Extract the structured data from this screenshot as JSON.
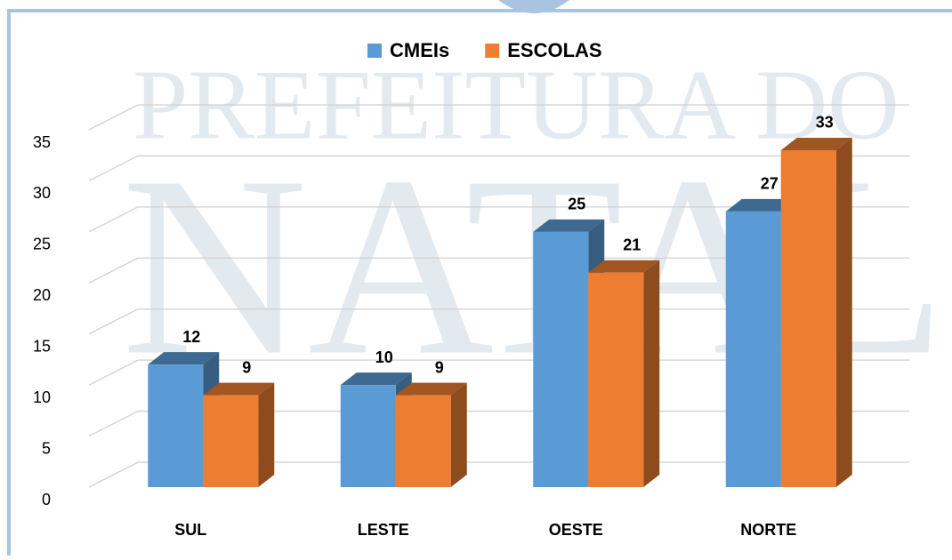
{
  "watermark": [
    "PREFEITURA DO",
    "NATAL"
  ],
  "chart_data": {
    "type": "bar3d",
    "categories": [
      "SUL",
      "LESTE",
      "OESTE",
      "NORTE"
    ],
    "series": [
      {
        "name": "CMEIs",
        "color": "#5b9bd5",
        "values": [
          12,
          10,
          25,
          27
        ]
      },
      {
        "name": "ESCOLAS",
        "color": "#ed7d31",
        "values": [
          9,
          9,
          21,
          33
        ]
      }
    ],
    "ylim": [
      0,
      35
    ],
    "yticks": [
      0,
      5,
      10,
      15,
      20,
      25,
      30,
      35
    ],
    "grid": true,
    "legend": "top"
  }
}
